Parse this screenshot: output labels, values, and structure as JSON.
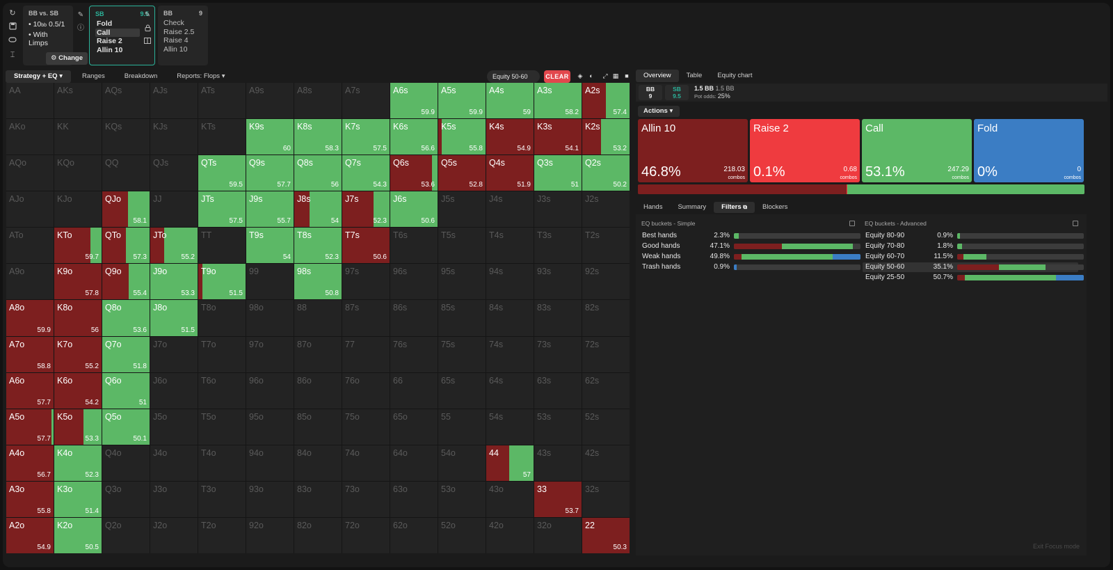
{
  "colors": {
    "allin": "#7d1f1f",
    "raise": "#ef3b3f",
    "call": "#5cb866",
    "fold": "#3b7dc4",
    "accent": "#2bb39a",
    "clear": "#e2474d"
  },
  "sidebar": {
    "icons": [
      "refresh-icon",
      "save-icon",
      "gamepad-icon",
      "text-cursor-icon"
    ]
  },
  "scenario": {
    "title": "BB vs. SB",
    "stack": "10",
    "stack_unit": "bb",
    "blinds": "0.5/1",
    "line2": "With Limps",
    "change_label": "Change"
  },
  "nodes": [
    {
      "position": "SB",
      "stack": "9.5",
      "actions": [
        "Fold",
        "Call",
        "Raise 2",
        "Allin 10"
      ],
      "selected": 1
    },
    {
      "position": "BB",
      "stack": "9",
      "actions": [
        "Check",
        "Raise 2.5",
        "Raise 4",
        "Allin 10"
      ]
    }
  ],
  "toolbar": {
    "tabs": [
      "Strategy + EQ",
      "Ranges",
      "Breakdown",
      "Reports: Flops"
    ],
    "filter_chip": "Equity 50-60",
    "clear_label": "CLEAR"
  },
  "grid": [
    [
      [
        "AA",
        null,
        0,
        0,
        0
      ],
      [
        "AKs",
        null,
        0,
        0,
        0
      ],
      [
        "AQs",
        null,
        0,
        0,
        0
      ],
      [
        "AJs",
        null,
        0,
        0,
        0
      ],
      [
        "ATs",
        null,
        0,
        0,
        0
      ],
      [
        "A9s",
        null,
        0,
        0,
        0
      ],
      [
        "A8s",
        null,
        0,
        0,
        0
      ],
      [
        "A7s",
        null,
        0,
        0,
        0
      ],
      [
        "A6s",
        "59.9",
        0,
        100,
        1
      ],
      [
        "A5s",
        "59.9",
        0,
        100,
        1
      ],
      [
        "A4s",
        "59",
        0,
        100,
        1
      ],
      [
        "A3s",
        "58.2",
        0,
        100,
        1
      ],
      [
        "A2s",
        "57.4",
        50,
        50,
        1
      ]
    ],
    [
      [
        "AKo",
        null,
        0,
        0,
        0
      ],
      [
        "KK",
        null,
        0,
        0,
        0
      ],
      [
        "KQs",
        null,
        0,
        0,
        0
      ],
      [
        "KJs",
        null,
        0,
        0,
        0
      ],
      [
        "KTs",
        null,
        0,
        0,
        0
      ],
      [
        "K9s",
        "60",
        0,
        100,
        1
      ],
      [
        "K8s",
        "58.3",
        0,
        100,
        1
      ],
      [
        "K7s",
        "57.5",
        0,
        100,
        1
      ],
      [
        "K6s",
        "56.6",
        0,
        100,
        1
      ],
      [
        "K5s",
        "55.8",
        7,
        93,
        1
      ],
      [
        "K4s",
        "54.9",
        100,
        0,
        1
      ],
      [
        "K3s",
        "54.1",
        100,
        0,
        1
      ],
      [
        "K2s",
        "53.2",
        40,
        60,
        1
      ]
    ],
    [
      [
        "AQo",
        null,
        0,
        0,
        0
      ],
      [
        "KQo",
        null,
        0,
        0,
        0
      ],
      [
        "QQ",
        null,
        0,
        0,
        0
      ],
      [
        "QJs",
        null,
        0,
        0,
        0
      ],
      [
        "QTs",
        "59.5",
        0,
        100,
        1
      ],
      [
        "Q9s",
        "57.7",
        0,
        100,
        1
      ],
      [
        "Q8s",
        "56",
        0,
        100,
        1
      ],
      [
        "Q7s",
        "54.3",
        0,
        100,
        1
      ],
      [
        "Q6s",
        "53.6",
        88,
        12,
        1
      ],
      [
        "Q5s",
        "52.8",
        100,
        0,
        1
      ],
      [
        "Q4s",
        "51.9",
        100,
        0,
        1
      ],
      [
        "Q3s",
        "51",
        0,
        100,
        1
      ],
      [
        "Q2s",
        "50.2",
        0,
        100,
        1
      ]
    ],
    [
      [
        "AJo",
        null,
        0,
        0,
        0
      ],
      [
        "KJo",
        null,
        0,
        0,
        0
      ],
      [
        "QJo",
        "58.1",
        55,
        45,
        1
      ],
      [
        "JJ",
        null,
        0,
        0,
        0
      ],
      [
        "JTs",
        "57.5",
        0,
        100,
        1
      ],
      [
        "J9s",
        "55.7",
        0,
        100,
        1
      ],
      [
        "J8s",
        "54",
        33,
        67,
        1
      ],
      [
        "J7s",
        "52.3",
        66,
        34,
        1
      ],
      [
        "J6s",
        "50.6",
        0,
        100,
        1
      ],
      [
        "J5s",
        null,
        0,
        0,
        0
      ],
      [
        "J4s",
        null,
        0,
        0,
        0
      ],
      [
        "J3s",
        null,
        0,
        0,
        0
      ],
      [
        "J2s",
        null,
        0,
        0,
        0
      ]
    ],
    [
      [
        "ATo",
        null,
        0,
        0,
        0
      ],
      [
        "KTo",
        "59.7",
        77,
        23,
        1
      ],
      [
        "QTo",
        "57.3",
        50,
        50,
        1
      ],
      [
        "JTo",
        "55.2",
        30,
        70,
        1
      ],
      [
        "TT",
        null,
        0,
        0,
        0
      ],
      [
        "T9s",
        "54",
        0,
        100,
        1
      ],
      [
        "T8s",
        "52.3",
        0,
        100,
        1
      ],
      [
        "T7s",
        "50.6",
        100,
        0,
        1
      ],
      [
        "T6s",
        null,
        0,
        0,
        0
      ],
      [
        "T5s",
        null,
        0,
        0,
        0
      ],
      [
        "T4s",
        null,
        0,
        0,
        0
      ],
      [
        "T3s",
        null,
        0,
        0,
        0
      ],
      [
        "T2s",
        null,
        0,
        0,
        0
      ]
    ],
    [
      [
        "A9o",
        null,
        0,
        0,
        0
      ],
      [
        "K9o",
        "57.8",
        100,
        0,
        1
      ],
      [
        "Q9o",
        "55.4",
        56,
        44,
        1
      ],
      [
        "J9o",
        "53.3",
        0,
        100,
        1
      ],
      [
        "T9o",
        "51.5",
        9,
        91,
        1
      ],
      [
        "99",
        null,
        0,
        0,
        0
      ],
      [
        "98s",
        "50.8",
        0,
        100,
        1
      ],
      [
        "97s",
        null,
        0,
        0,
        0
      ],
      [
        "96s",
        null,
        0,
        0,
        0
      ],
      [
        "95s",
        null,
        0,
        0,
        0
      ],
      [
        "94s",
        null,
        0,
        0,
        0
      ],
      [
        "93s",
        null,
        0,
        0,
        0
      ],
      [
        "92s",
        null,
        0,
        0,
        0
      ]
    ],
    [
      [
        "A8o",
        "59.9",
        100,
        0,
        1
      ],
      [
        "K8o",
        "56",
        100,
        0,
        1
      ],
      [
        "Q8o",
        "53.6",
        0,
        100,
        1
      ],
      [
        "J8o",
        "51.5",
        0,
        100,
        1
      ],
      [
        "T8o",
        null,
        0,
        0,
        0
      ],
      [
        "98o",
        null,
        0,
        0,
        0
      ],
      [
        "88",
        null,
        0,
        0,
        0
      ],
      [
        "87s",
        null,
        0,
        0,
        0
      ],
      [
        "86s",
        null,
        0,
        0,
        0
      ],
      [
        "85s",
        null,
        0,
        0,
        0
      ],
      [
        "84s",
        null,
        0,
        0,
        0
      ],
      [
        "83s",
        null,
        0,
        0,
        0
      ],
      [
        "82s",
        null,
        0,
        0,
        0
      ]
    ],
    [
      [
        "A7o",
        "58.8",
        100,
        0,
        1
      ],
      [
        "K7o",
        "55.2",
        100,
        0,
        1
      ],
      [
        "Q7o",
        "51.8",
        0,
        100,
        1
      ],
      [
        "J7o",
        null,
        0,
        0,
        0
      ],
      [
        "T7o",
        null,
        0,
        0,
        0
      ],
      [
        "97o",
        null,
        0,
        0,
        0
      ],
      [
        "87o",
        null,
        0,
        0,
        0
      ],
      [
        "77",
        null,
        0,
        0,
        0
      ],
      [
        "76s",
        null,
        0,
        0,
        0
      ],
      [
        "75s",
        null,
        0,
        0,
        0
      ],
      [
        "74s",
        null,
        0,
        0,
        0
      ],
      [
        "73s",
        null,
        0,
        0,
        0
      ],
      [
        "72s",
        null,
        0,
        0,
        0
      ]
    ],
    [
      [
        "A6o",
        "57.7",
        100,
        0,
        1
      ],
      [
        "K6o",
        "54.2",
        100,
        0,
        1
      ],
      [
        "Q6o",
        "51",
        0,
        100,
        1
      ],
      [
        "J6o",
        null,
        0,
        0,
        0
      ],
      [
        "T6o",
        null,
        0,
        0,
        0
      ],
      [
        "96o",
        null,
        0,
        0,
        0
      ],
      [
        "86o",
        null,
        0,
        0,
        0
      ],
      [
        "76o",
        null,
        0,
        0,
        0
      ],
      [
        "66",
        null,
        0,
        0,
        0
      ],
      [
        "65s",
        null,
        0,
        0,
        0
      ],
      [
        "64s",
        null,
        0,
        0,
        0
      ],
      [
        "63s",
        null,
        0,
        0,
        0
      ],
      [
        "62s",
        null,
        0,
        0,
        0
      ]
    ],
    [
      [
        "A5o",
        "57.7",
        95,
        5,
        1
      ],
      [
        "K5o",
        "53.3",
        62,
        38,
        1
      ],
      [
        "Q5o",
        "50.1",
        0,
        100,
        1
      ],
      [
        "J5o",
        null,
        0,
        0,
        0
      ],
      [
        "T5o",
        null,
        0,
        0,
        0
      ],
      [
        "95o",
        null,
        0,
        0,
        0
      ],
      [
        "85o",
        null,
        0,
        0,
        0
      ],
      [
        "75o",
        null,
        0,
        0,
        0
      ],
      [
        "65o",
        null,
        0,
        0,
        0
      ],
      [
        "55",
        null,
        0,
        0,
        0
      ],
      [
        "54s",
        null,
        0,
        0,
        0
      ],
      [
        "53s",
        null,
        0,
        0,
        0
      ],
      [
        "52s",
        null,
        0,
        0,
        0
      ]
    ],
    [
      [
        "A4o",
        "56.7",
        100,
        0,
        1
      ],
      [
        "K4o",
        "52.3",
        0,
        100,
        1
      ],
      [
        "Q4o",
        null,
        0,
        0,
        0
      ],
      [
        "J4o",
        null,
        0,
        0,
        0
      ],
      [
        "T4o",
        null,
        0,
        0,
        0
      ],
      [
        "94o",
        null,
        0,
        0,
        0
      ],
      [
        "84o",
        null,
        0,
        0,
        0
      ],
      [
        "74o",
        null,
        0,
        0,
        0
      ],
      [
        "64o",
        null,
        0,
        0,
        0
      ],
      [
        "54o",
        null,
        0,
        0,
        0
      ],
      [
        "44",
        "57",
        49,
        51,
        1
      ],
      [
        "43s",
        null,
        0,
        0,
        0
      ],
      [
        "42s",
        null,
        0,
        0,
        0
      ]
    ],
    [
      [
        "A3o",
        "55.8",
        100,
        0,
        1
      ],
      [
        "K3o",
        "51.4",
        0,
        100,
        1
      ],
      [
        "Q3o",
        null,
        0,
        0,
        0
      ],
      [
        "J3o",
        null,
        0,
        0,
        0
      ],
      [
        "T3o",
        null,
        0,
        0,
        0
      ],
      [
        "93o",
        null,
        0,
        0,
        0
      ],
      [
        "83o",
        null,
        0,
        0,
        0
      ],
      [
        "73o",
        null,
        0,
        0,
        0
      ],
      [
        "63o",
        null,
        0,
        0,
        0
      ],
      [
        "53o",
        null,
        0,
        0,
        0
      ],
      [
        "43o",
        null,
        0,
        0,
        0
      ],
      [
        "33",
        "53.7",
        100,
        0,
        1
      ],
      [
        "32s",
        null,
        0,
        0,
        0
      ]
    ],
    [
      [
        "A2o",
        "54.9",
        100,
        0,
        1
      ],
      [
        "K2o",
        "50.5",
        0,
        100,
        1
      ],
      [
        "Q2o",
        null,
        0,
        0,
        0
      ],
      [
        "J2o",
        null,
        0,
        0,
        0
      ],
      [
        "T2o",
        null,
        0,
        0,
        0
      ],
      [
        "92o",
        null,
        0,
        0,
        0
      ],
      [
        "82o",
        null,
        0,
        0,
        0
      ],
      [
        "72o",
        null,
        0,
        0,
        0
      ],
      [
        "62o",
        null,
        0,
        0,
        0
      ],
      [
        "52o",
        null,
        0,
        0,
        0
      ],
      [
        "42o",
        null,
        0,
        0,
        0
      ],
      [
        "32o",
        null,
        0,
        0,
        0
      ],
      [
        "22",
        "50.3",
        100,
        0,
        1
      ]
    ]
  ],
  "right_panel": {
    "tabs": [
      "Overview",
      "Table",
      "Equity chart"
    ],
    "pot": {
      "bb_label": "BB",
      "bb_stack": "9",
      "sb_label": "SB",
      "sb_stack": "9.5",
      "pot_main": "1.5 BB",
      "pot_sub": "1.5 BB",
      "odds_label": "Pot odds:",
      "odds_value": "25%"
    },
    "actions_label": "Actions",
    "actions": [
      {
        "name": "Allin 10",
        "pct": "46.8%",
        "combos": "218.03",
        "combos_label": "combos",
        "color": "#7d1f1f",
        "share": 46.8
      },
      {
        "name": "Raise 2",
        "pct": "0.1%",
        "combos": "0.68",
        "combos_label": "combos",
        "color": "#ef3b3f",
        "share": 0.1
      },
      {
        "name": "Call",
        "pct": "53.1%",
        "combos": "247.29",
        "combos_label": "combos",
        "color": "#5cb866",
        "share": 53.1
      },
      {
        "name": "Fold",
        "pct": "0%",
        "combos": "0",
        "combos_label": "combos",
        "color": "#3b7dc4",
        "share": 0
      }
    ],
    "bottom_tabs": [
      "Hands",
      "Summary",
      "Filters",
      "Blockers"
    ],
    "simple": {
      "title": "EQ buckets - Simple",
      "rows": [
        {
          "label": "Best hands",
          "value": "2.3%",
          "allin": 0,
          "call": 4,
          "fold": 0
        },
        {
          "label": "Good hands",
          "value": "47.1%",
          "allin": 38,
          "call": 56,
          "fold": 0
        },
        {
          "label": "Weak hands",
          "value": "49.8%",
          "allin": 6,
          "call": 72,
          "fold": 22
        },
        {
          "label": "Trash hands",
          "value": "0.9%",
          "allin": 0,
          "call": 0,
          "fold": 2
        }
      ]
    },
    "advanced": {
      "title": "EQ buckets - Advanced",
      "rows": [
        {
          "label": "Equity 80-90",
          "value": "0.9%",
          "allin": 0,
          "call": 2,
          "fold": 0,
          "hl": false
        },
        {
          "label": "Equity 70-80",
          "value": "1.8%",
          "allin": 0,
          "call": 4,
          "fold": 0,
          "hl": false
        },
        {
          "label": "Equity 60-70",
          "value": "11.5%",
          "allin": 5,
          "call": 18,
          "fold": 0,
          "hl": false
        },
        {
          "label": "Equity 50-60",
          "value": "35.1%",
          "allin": 33,
          "call": 37,
          "fold": 0,
          "hl": true
        },
        {
          "label": "Equity 25-50",
          "value": "50.7%",
          "allin": 6,
          "call": 72,
          "fold": 22,
          "hl": false
        }
      ]
    },
    "exit_focus": "Exit Focus mode"
  }
}
